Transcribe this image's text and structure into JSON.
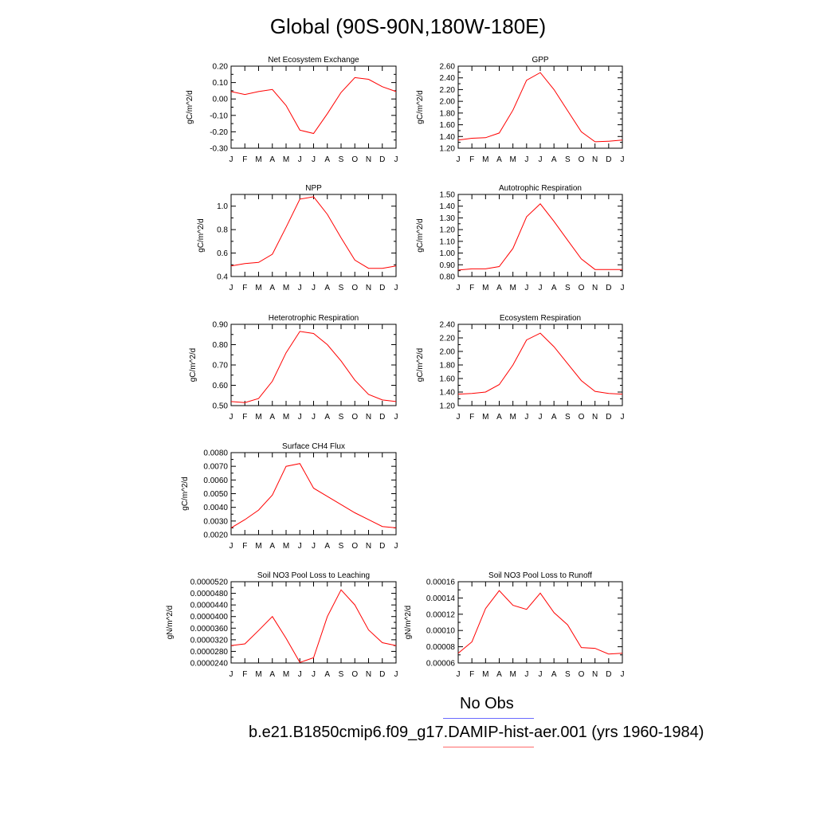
{
  "page": {
    "title": "Global (90S-90N,180W-180E)"
  },
  "colors": {
    "model_line": "#ff0000",
    "obs_line": "#0000ff",
    "axis": "#000000"
  },
  "months": [
    "J",
    "F",
    "M",
    "A",
    "M",
    "J",
    "J",
    "A",
    "S",
    "O",
    "N",
    "D",
    "J"
  ],
  "chart_data": [
    {
      "type": "line",
      "title": "Net Ecosystem Exchange",
      "ylabel": "gC/m^2/d",
      "ylim": [
        -0.3,
        0.2
      ],
      "yticks": [
        0.2,
        0.1,
        0.0,
        -0.1,
        -0.2,
        -0.3
      ],
      "ytick_labels": [
        "0.20",
        "0.10",
        "0.00",
        "-0.10",
        "-0.20",
        "-0.30"
      ],
      "values": [
        0.045,
        0.027,
        0.045,
        0.058,
        -0.04,
        -0.19,
        -0.21,
        -0.09,
        0.04,
        0.13,
        0.12,
        0.075,
        0.045
      ]
    },
    {
      "type": "line",
      "title": "GPP",
      "ylabel": "gC/m^2/d",
      "ylim": [
        1.2,
        2.6
      ],
      "yticks": [
        2.6,
        2.4,
        2.2,
        2.0,
        1.8,
        1.6,
        1.4,
        1.2
      ],
      "ytick_labels": [
        "2.60",
        "2.40",
        "2.20",
        "2.00",
        "1.80",
        "1.60",
        "1.40",
        "1.20"
      ],
      "values": [
        1.34,
        1.37,
        1.38,
        1.46,
        1.85,
        2.36,
        2.49,
        2.2,
        1.84,
        1.48,
        1.31,
        1.32,
        1.34
      ]
    },
    {
      "type": "line",
      "title": "NPP",
      "ylabel": "gC/m^2/d",
      "ylim": [
        0.4,
        1.1
      ],
      "yticks": [
        1.0,
        0.8,
        0.6,
        0.4
      ],
      "ytick_labels": [
        "1.0",
        "0.8",
        "0.6",
        "0.4"
      ],
      "values": [
        0.49,
        0.51,
        0.52,
        0.59,
        0.82,
        1.06,
        1.08,
        0.93,
        0.73,
        0.54,
        0.47,
        0.47,
        0.49
      ]
    },
    {
      "type": "line",
      "title": "Autotrophic Respiration",
      "ylabel": "gC/m^2/d",
      "ylim": [
        0.8,
        1.5
      ],
      "yticks": [
        1.5,
        1.4,
        1.3,
        1.2,
        1.1,
        1.0,
        0.9,
        0.8
      ],
      "ytick_labels": [
        "1.50",
        "1.40",
        "1.30",
        "1.20",
        "1.10",
        "1.00",
        "0.90",
        "0.80"
      ],
      "values": [
        0.855,
        0.865,
        0.865,
        0.885,
        1.04,
        1.31,
        1.42,
        1.27,
        1.11,
        0.95,
        0.86,
        0.86,
        0.86
      ]
    },
    {
      "type": "line",
      "title": "Heterotrophic Respiration",
      "ylabel": "gC/m^2/d",
      "ylim": [
        0.5,
        0.9
      ],
      "yticks": [
        0.9,
        0.8,
        0.7,
        0.6,
        0.5
      ],
      "ytick_labels": [
        "0.90",
        "0.80",
        "0.70",
        "0.60",
        "0.50"
      ],
      "values": [
        0.52,
        0.515,
        0.535,
        0.62,
        0.76,
        0.865,
        0.855,
        0.8,
        0.72,
        0.625,
        0.555,
        0.528,
        0.52
      ]
    },
    {
      "type": "line",
      "title": "Ecosystem Respiration",
      "ylabel": "gC/m^2/d",
      "ylim": [
        1.2,
        2.4
      ],
      "yticks": [
        2.4,
        2.2,
        2.0,
        1.8,
        1.6,
        1.4,
        1.2
      ],
      "ytick_labels": [
        "2.40",
        "2.20",
        "2.00",
        "1.80",
        "1.60",
        "1.40",
        "1.20"
      ],
      "values": [
        1.37,
        1.38,
        1.4,
        1.51,
        1.8,
        2.17,
        2.27,
        2.07,
        1.82,
        1.57,
        1.41,
        1.38,
        1.37
      ]
    },
    {
      "type": "line",
      "title": "Surface CH4 Flux",
      "ylabel": "gC/m^2/d",
      "ylim": [
        0.002,
        0.008
      ],
      "yticks": [
        0.008,
        0.007,
        0.006,
        0.005,
        0.004,
        0.003,
        0.002
      ],
      "ytick_labels": [
        "0.0080",
        "0.0070",
        "0.0060",
        "0.0050",
        "0.0040",
        "0.0030",
        "0.0020"
      ],
      "values": [
        0.0025,
        0.0031,
        0.0038,
        0.0049,
        0.007,
        0.0072,
        0.0054,
        0.0048,
        0.0042,
        0.0036,
        0.0031,
        0.0026,
        0.0025
      ]
    },
    {
      "type": "line",
      "title": "Soil NO3 Pool Loss to Leaching",
      "ylabel": "gN/m^2/d",
      "ylim": [
        2.4e-05,
        5.2e-05
      ],
      "yticks": [
        5.2e-05,
        4.8e-05,
        4.4e-05,
        4e-05,
        3.6e-05,
        3.2e-05,
        2.8e-05,
        2.4e-05
      ],
      "ytick_labels": [
        "0.0000520",
        "0.0000480",
        "0.0000440",
        "0.0000400",
        "0.0000360",
        "0.0000320",
        "0.0000280",
        "0.0000240"
      ],
      "values": [
        3e-05,
        3.06e-05,
        3.52e-05,
        4e-05,
        3.25e-05,
        2.42e-05,
        2.58e-05,
        4e-05,
        4.92e-05,
        4.4e-05,
        3.54e-05,
        3.1e-05,
        3e-05
      ]
    },
    {
      "type": "line",
      "title": "Soil NO3 Pool Loss to Runoff",
      "ylabel": "gN/m^2/d",
      "ylim": [
        6e-05,
        0.00016
      ],
      "yticks": [
        0.00016,
        0.00014,
        0.00012,
        0.0001,
        8e-05,
        6e-05
      ],
      "ytick_labels": [
        "0.00016",
        "0.00014",
        "0.00012",
        "0.00010",
        "0.00008",
        "0.00006"
      ],
      "values": [
        7.2e-05,
        8.6e-05,
        0.000127,
        0.000149,
        0.000131,
        0.000126,
        0.000146,
        0.000122,
        0.000107,
        7.9e-05,
        7.8e-05,
        7.1e-05,
        7.2e-05
      ]
    }
  ],
  "legend": {
    "entries": [
      {
        "label": "No Obs",
        "color": "#0000ff"
      },
      {
        "label": "b.e21.B1850cmip6.f09_g17.DAMIP-hist-aer.001 (yrs 1960-1984)",
        "color": "#ff0000"
      }
    ]
  }
}
